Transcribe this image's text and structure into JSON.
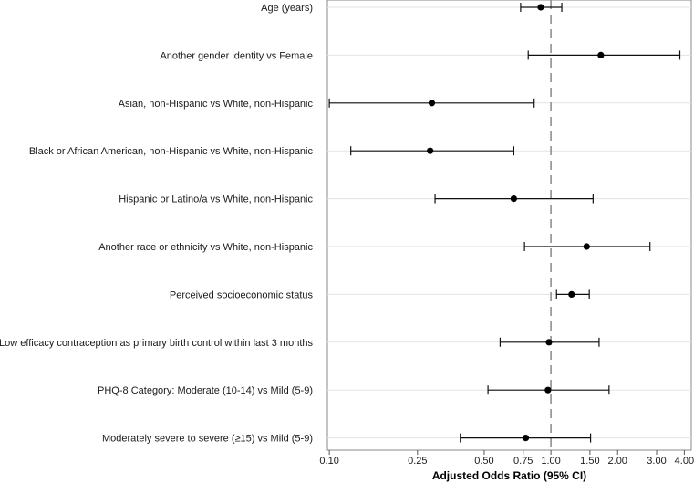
{
  "chart_data": {
    "type": "forest",
    "xlabel": "Adjusted Odds Ratio (95% CI)",
    "xscale": "log",
    "xlim": [
      0.098,
      4.3
    ],
    "reference_line": 1.0,
    "xticks": [
      0.1,
      0.25,
      0.5,
      0.75,
      1.0,
      1.5,
      2.0,
      3.0,
      4.0
    ],
    "xtick_labels": [
      "0.10",
      "0.25",
      "0.50",
      "0.75",
      "1.00",
      "1.50",
      "2.00",
      "3.00",
      "4.00"
    ],
    "rows": [
      {
        "label": "Age (years)",
        "or": 0.9,
        "lo": 0.73,
        "hi": 1.12
      },
      {
        "label": "Another gender identity vs Female",
        "or": 1.68,
        "lo": 0.79,
        "hi": 3.82
      },
      {
        "label": "Asian, non-Hispanic vs White, non-Hispanic",
        "or": 0.29,
        "lo": 0.1,
        "hi": 0.84
      },
      {
        "label": "Black or African American, non-Hispanic vs White, non-Hispanic",
        "or": 0.285,
        "lo": 0.125,
        "hi": 0.68
      },
      {
        "label": "Hispanic or Latino/a vs White, non-Hispanic",
        "or": 0.68,
        "lo": 0.3,
        "hi": 1.55
      },
      {
        "label": "Another race or ethnicity  vs White, non-Hispanic",
        "or": 1.45,
        "lo": 0.76,
        "hi": 2.8
      },
      {
        "label": "Perceived socioeconomic status",
        "or": 1.24,
        "lo": 1.06,
        "hi": 1.49
      },
      {
        "label": "Low efficacy contraception as primary birth control within last 3 months",
        "or": 0.98,
        "lo": 0.59,
        "hi": 1.65
      },
      {
        "label": "PHQ-8 Category: Moderate (10-14) vs Mild (5-9)",
        "or": 0.97,
        "lo": 0.52,
        "hi": 1.83
      },
      {
        "label": "Moderately severe to severe  (≥15) vs Mild (5-9)",
        "or": 0.77,
        "lo": 0.39,
        "hi": 1.51
      }
    ]
  }
}
